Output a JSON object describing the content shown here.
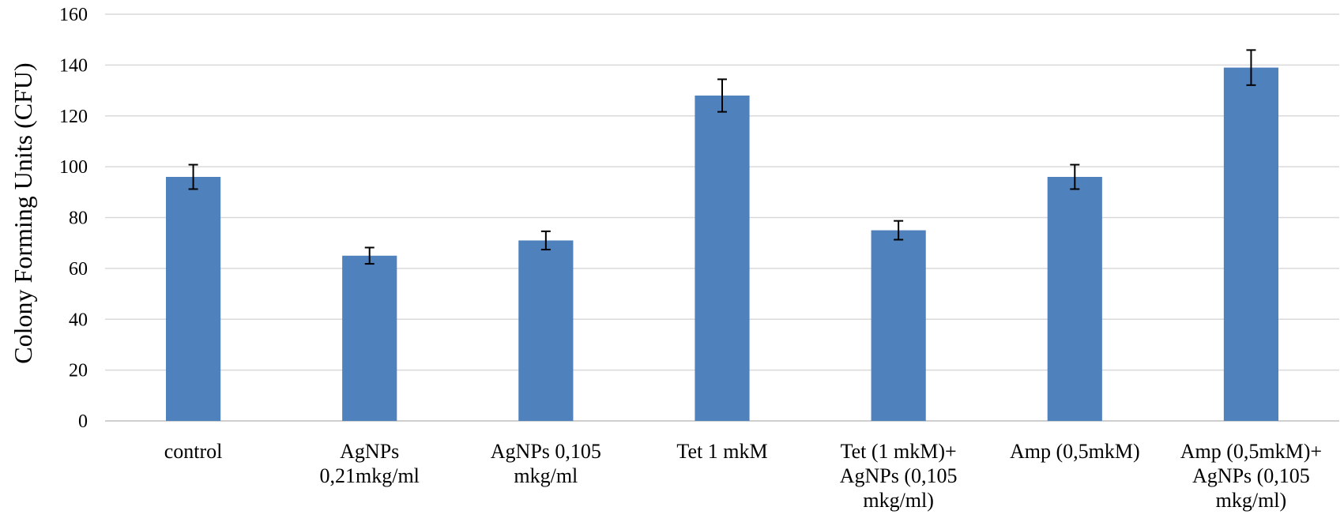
{
  "chart_data": {
    "type": "bar",
    "title": "",
    "xlabel": "",
    "ylabel": "Colony Forming Units (CFU)",
    "ylim": [
      0,
      160
    ],
    "yticks": [
      0,
      20,
      40,
      60,
      80,
      100,
      120,
      140,
      160
    ],
    "grid": true,
    "bar_color": "#4f81bd",
    "categories": [
      [
        "control"
      ],
      [
        "AgNPs",
        "0,21mkg/ml"
      ],
      [
        "AgNPs 0,105",
        "mkg/ml"
      ],
      [
        "Tet 1 mkM"
      ],
      [
        "Tet (1 mkM)+",
        "AgNPs (0,105",
        "mkg/ml)"
      ],
      [
        "Amp (0,5mkM)"
      ],
      [
        "Amp (0,5mkM)+",
        "AgNPs (0,105",
        "mkg/ml)"
      ]
    ],
    "values": [
      96,
      65,
      71,
      128,
      75,
      96,
      139
    ],
    "errors": [
      4.8,
      3.2,
      3.6,
      6.4,
      3.7,
      4.8,
      6.9
    ]
  }
}
